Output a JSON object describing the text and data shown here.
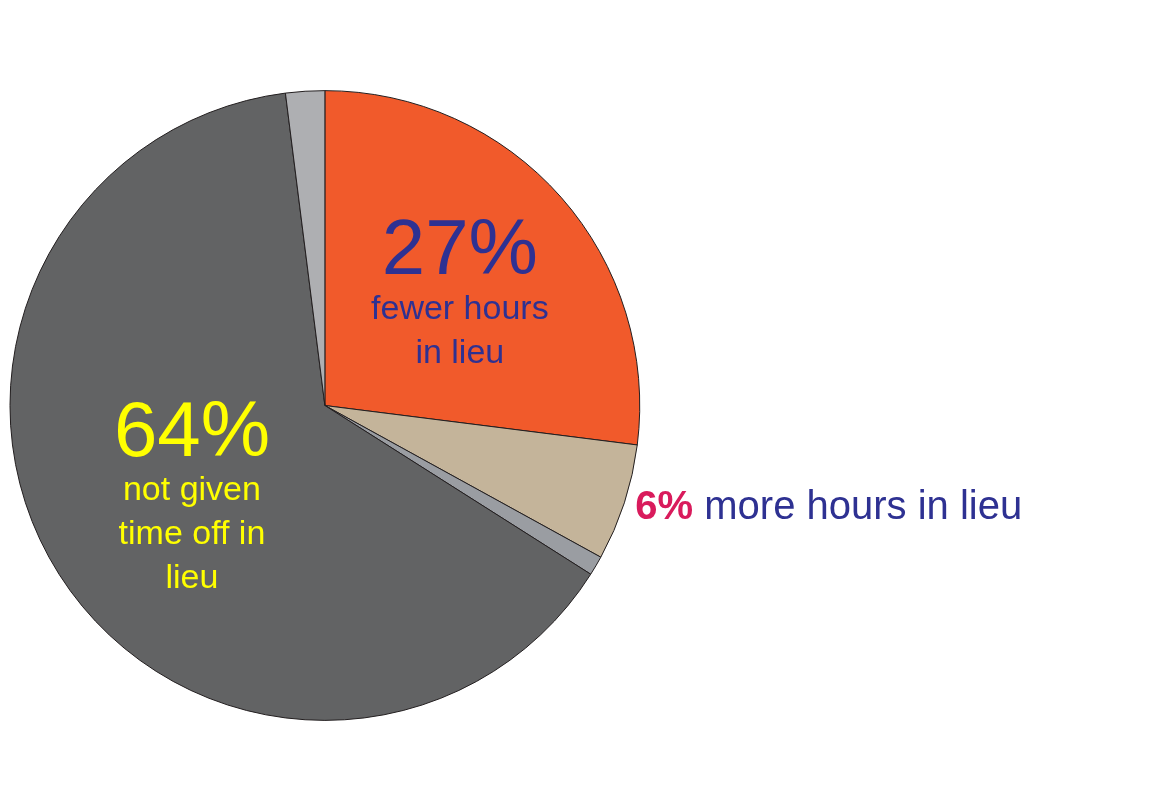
{
  "chart_data": {
    "type": "pie",
    "categories": [
      "fewer hours in lieu",
      "more hours in lieu",
      null,
      "not given time off in lieu",
      null
    ],
    "values": [
      27,
      6,
      1,
      64,
      2
    ],
    "value_labels": [
      "27%",
      "6%",
      null,
      "64%",
      null
    ],
    "colors": [
      "#f15a2b",
      "#c4b49a",
      "#9a9da2",
      "#626364",
      "#aeafb2"
    ],
    "legend": false
  }
}
